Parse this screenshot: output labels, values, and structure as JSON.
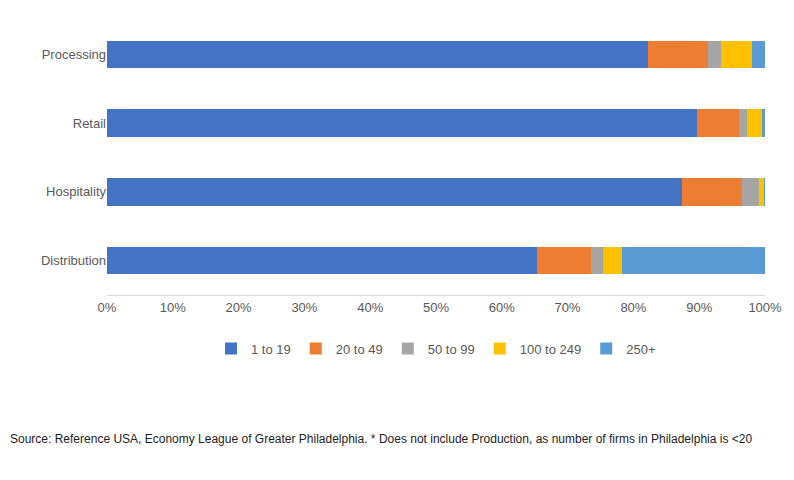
{
  "chart_data": {
    "type": "bar",
    "orientation": "horizontal",
    "stacked": true,
    "categories": [
      "Processing",
      "Retail",
      "Hospitality",
      "Distribution"
    ],
    "series": [
      {
        "name": "1 to 19",
        "color": "#4472c4",
        "values": [
          82.2,
          89.6,
          87.4,
          65.3
        ]
      },
      {
        "name": "20 to 49",
        "color": "#ed7d31",
        "values": [
          9.1,
          6.5,
          9.1,
          8.3
        ]
      },
      {
        "name": "50 to 99",
        "color": "#a5a5a5",
        "values": [
          2.0,
          1.2,
          2.6,
          1.8
        ]
      },
      {
        "name": "100 to 249",
        "color": "#ffc000",
        "values": [
          4.7,
          2.2,
          0.7,
          2.8
        ]
      },
      {
        "name": "250+",
        "color": "#5b9bd5",
        "values": [
          2.0,
          0.5,
          0.2,
          21.8
        ]
      }
    ],
    "xlim": [
      0,
      100
    ],
    "xticks": [
      {
        "value": 0,
        "label": "0%"
      },
      {
        "value": 10,
        "label": "10%"
      },
      {
        "value": 20,
        "label": "20%"
      },
      {
        "value": 30,
        "label": "30%"
      },
      {
        "value": 40,
        "label": "40%"
      },
      {
        "value": 50,
        "label": "50%"
      },
      {
        "value": 60,
        "label": "60%"
      },
      {
        "value": 70,
        "label": "70%"
      },
      {
        "value": 80,
        "label": "80%"
      },
      {
        "value": 90,
        "label": "90%"
      },
      {
        "value": 100,
        "label": "100%"
      }
    ],
    "grid": false,
    "legend": "bottom",
    "annotations": [
      "Source: Reference USA, Economy League of Greater Philadelphia. * Does not include Production, as number of firms in Philadelphia is <20"
    ]
  }
}
